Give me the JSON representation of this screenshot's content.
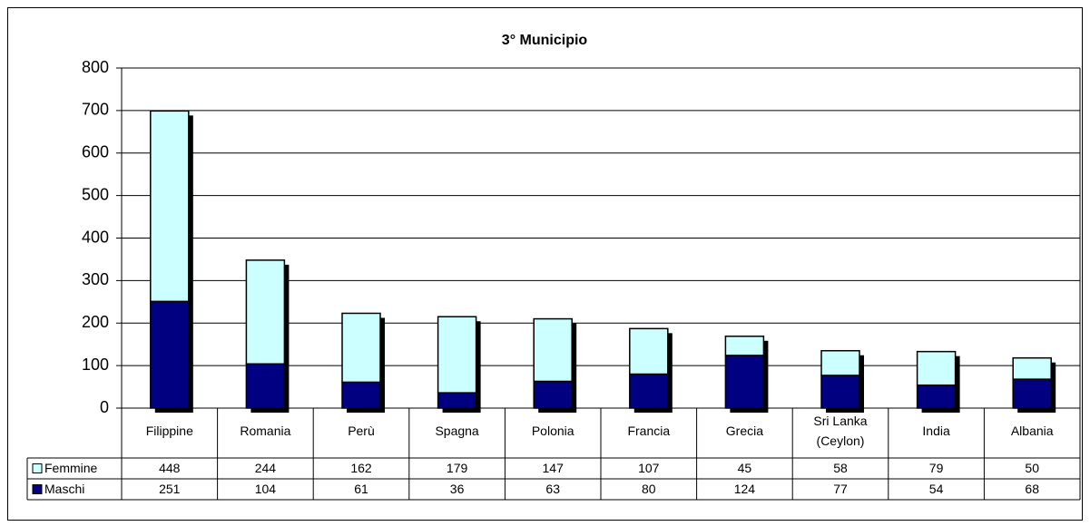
{
  "chart_data": {
    "type": "stacked_bar",
    "title": "3° Municipio",
    "categories": [
      "Filippine",
      "Romania",
      "Perù",
      "Spagna",
      "Polonia",
      "Francia",
      "Grecia",
      "Sri Lanka (Ceylon)",
      "India",
      "Albania"
    ],
    "series": [
      {
        "name": "Femmine",
        "color": "#ccffff",
        "values": [
          448,
          244,
          162,
          179,
          147,
          107,
          45,
          58,
          79,
          50
        ]
      },
      {
        "name": "Maschi",
        "color": "#000080",
        "values": [
          251,
          104,
          61,
          36,
          63,
          80,
          124,
          77,
          54,
          68
        ]
      }
    ],
    "ylim": [
      0,
      800
    ],
    "yticks": [
      0,
      100,
      200,
      300,
      400,
      500,
      600,
      700,
      800
    ],
    "grid": true
  }
}
